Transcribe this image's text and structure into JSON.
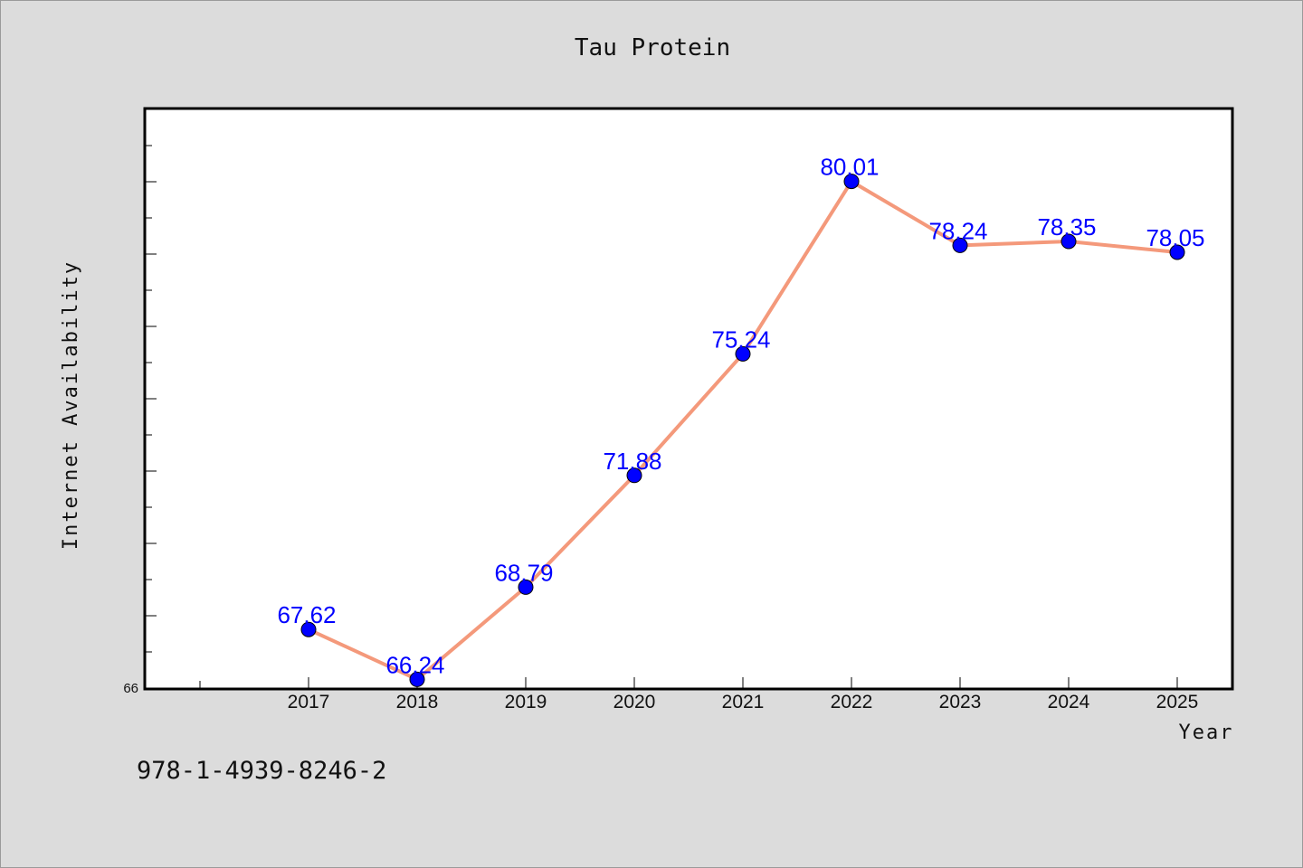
{
  "watermark": "978-1-4939-8246-2",
  "chart_data": {
    "type": "line",
    "title": "Tau Protein",
    "xlabel": "Year",
    "ylabel": "Internet Availability",
    "categories": [
      "2017",
      "2018",
      "2019",
      "2020",
      "2021",
      "2022",
      "2023",
      "2024",
      "2025"
    ],
    "series": [
      {
        "values": [
          67.62,
          66.24,
          68.79,
          71.88,
          75.24,
          80.01,
          78.24,
          78.35,
          78.05
        ]
      }
    ],
    "data_labels": [
      "67.62",
      "66.24",
      "68.79",
      "71.88",
      "75.24",
      "80.01",
      "78.24",
      "78.35",
      "78.05"
    ],
    "ylim": [
      66,
      82
    ],
    "y_tick_labels": [
      "66"
    ],
    "line_color": "#f4997b",
    "marker_color": "#0000ff",
    "label_color": "#0000ff",
    "grid": false,
    "legend": "none"
  }
}
